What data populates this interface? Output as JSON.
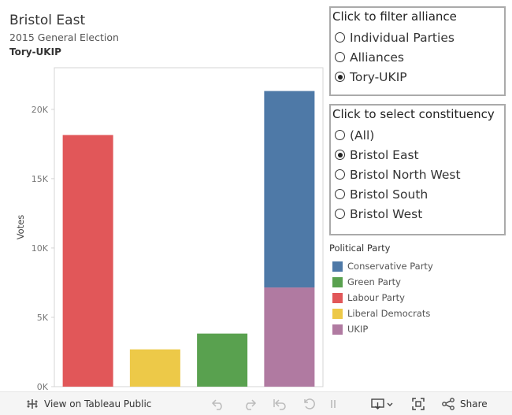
{
  "header": {
    "title": "Bristol East",
    "subtitle": "2015 General Election",
    "subtitle2": "Tory-UKIP"
  },
  "filter_alliance": {
    "title": "Click to filter alliance",
    "options": [
      "Individual Parties",
      "Alliances",
      "Tory-UKIP"
    ],
    "selected": "Tory-UKIP"
  },
  "constituency": {
    "title": "Click to select constituency",
    "options": [
      "(All)",
      "Bristol East",
      "Bristol North West",
      "Bristol South",
      "Bristol West"
    ],
    "selected": "Bristol East"
  },
  "legend": {
    "title": "Political Party",
    "items": [
      {
        "label": "Conservative Party",
        "color": "#4e79a7"
      },
      {
        "label": "Green Party",
        "color": "#59a14f"
      },
      {
        "label": "Labour Party",
        "color": "#e15759"
      },
      {
        "label": "Liberal Democrats",
        "color": "#edc948"
      },
      {
        "label": "UKIP",
        "color": "#b07aa1"
      }
    ]
  },
  "toolbar": {
    "view_on_tableau": "View on Tableau Public",
    "share": "Share"
  },
  "chart_data": {
    "type": "bar",
    "stacked": true,
    "ylabel": "Votes",
    "ylim": [
      0,
      23000
    ],
    "yticks": [
      0,
      5000,
      10000,
      15000,
      20000
    ],
    "yticklabels": [
      "0K",
      "5K",
      "10K",
      "15K",
      "20K"
    ],
    "grid": false,
    "bars": [
      {
        "segments": [
          {
            "party": "Labour Party",
            "value": 18148,
            "color": "#e15759"
          }
        ]
      },
      {
        "segments": [
          {
            "party": "Liberal Democrats",
            "value": 2689,
            "color": "#edc948"
          }
        ]
      },
      {
        "segments": [
          {
            "party": "Green Party",
            "value": 3827,
            "color": "#59a14f"
          }
        ]
      },
      {
        "segments": [
          {
            "party": "UKIP",
            "value": 7152,
            "color": "#b07aa1"
          },
          {
            "party": "Conservative Party",
            "value": 14168,
            "color": "#4e79a7"
          }
        ]
      }
    ]
  }
}
